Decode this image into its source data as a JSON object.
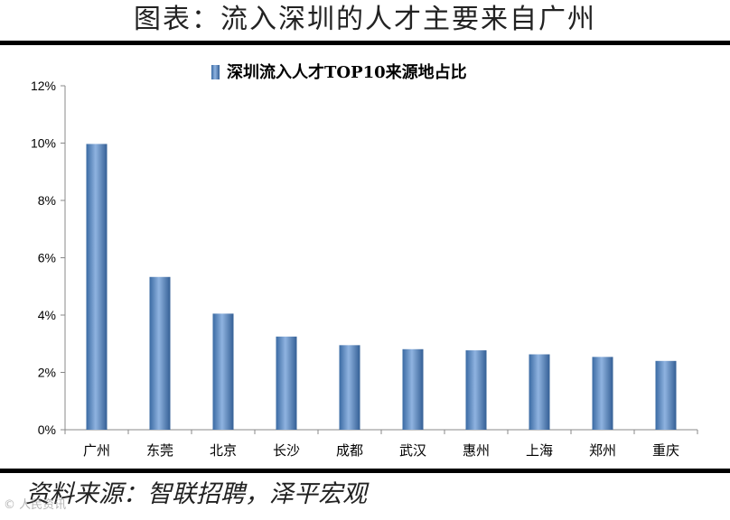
{
  "figure": {
    "title": "图表：流入深圳的人才主要来自广州",
    "source": "资料来源：智联招聘，泽平宏观",
    "watermark": "© 人民资讯"
  },
  "chart_data": {
    "type": "bar",
    "legend": "深圳流入人才TOP10来源地占比",
    "legend_position": "top-center",
    "categories": [
      "广州",
      "东莞",
      "北京",
      "长沙",
      "成都",
      "武汉",
      "惠州",
      "上海",
      "郑州",
      "重庆"
    ],
    "values": [
      9.97,
      5.33,
      4.05,
      3.25,
      2.95,
      2.81,
      2.77,
      2.63,
      2.54,
      2.4
    ],
    "unit": "%",
    "ylim": [
      0,
      12
    ],
    "yticks": [
      0,
      2,
      4,
      6,
      8,
      10,
      12
    ],
    "grid": false,
    "bar_color": "#4f81bd"
  }
}
